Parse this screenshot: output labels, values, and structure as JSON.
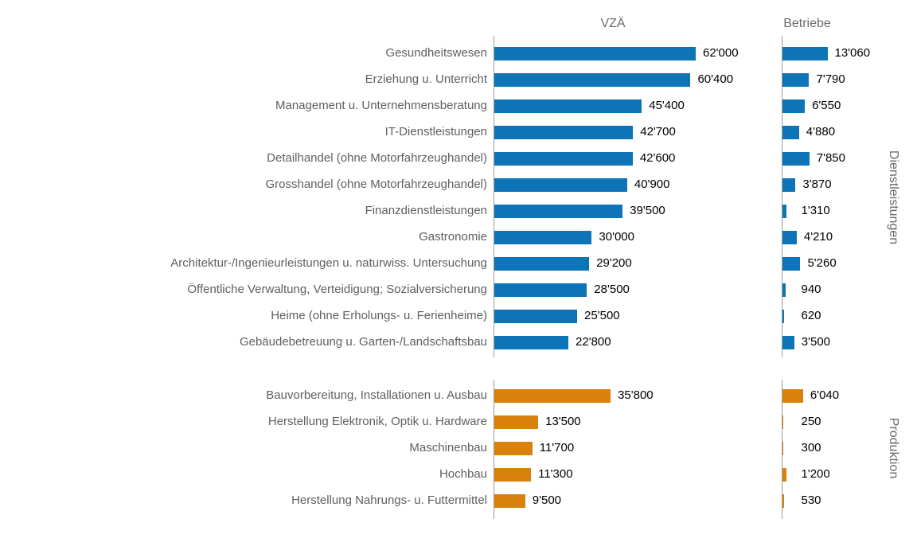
{
  "chart_data": {
    "type": "bar",
    "orientation": "horizontal",
    "title": "",
    "gridlines": false,
    "value_labels": true,
    "axis_color": "#9b9b9b",
    "panels": [
      {
        "title": "VZÄ",
        "max": 62000
      },
      {
        "title": "Betriebe",
        "max": 13060
      }
    ],
    "groups": [
      {
        "label": "Dienstleistungen",
        "color": "#0e74b8",
        "rows": [
          {
            "category": "Gesundheitswesen",
            "vza": 62000,
            "vza_label": "62'000",
            "betriebe": 13060,
            "betriebe_label": "13'060"
          },
          {
            "category": "Erziehung u. Unterricht",
            "vza": 60400,
            "vza_label": "60'400",
            "betriebe": 7790,
            "betriebe_label": "7'790"
          },
          {
            "category": "Management u. Unternehmensberatung",
            "vza": 45400,
            "vza_label": "45'400",
            "betriebe": 6550,
            "betriebe_label": "6'550"
          },
          {
            "category": "IT-Dienstleistungen",
            "vza": 42700,
            "vza_label": "42'700",
            "betriebe": 4880,
            "betriebe_label": "4'880"
          },
          {
            "category": "Detailhandel (ohne Motorfahrzeughandel)",
            "vza": 42600,
            "vza_label": "42'600",
            "betriebe": 7850,
            "betriebe_label": "7'850"
          },
          {
            "category": "Grosshandel (ohne Motorfahrzeughandel)",
            "vza": 40900,
            "vza_label": "40'900",
            "betriebe": 3870,
            "betriebe_label": "3'870"
          },
          {
            "category": "Finanzdienstleistungen",
            "vza": 39500,
            "vza_label": "39'500",
            "betriebe": 1310,
            "betriebe_label": "1'310"
          },
          {
            "category": "Gastronomie",
            "vza": 30000,
            "vza_label": "30'000",
            "betriebe": 4210,
            "betriebe_label": "4'210"
          },
          {
            "category": "Architektur-/Ingenieurleistungen u. naturwiss. Untersuchung",
            "vza": 29200,
            "vza_label": "29'200",
            "betriebe": 5260,
            "betriebe_label": "5'260"
          },
          {
            "category": "Öffentliche Verwaltung, Verteidigung; Sozialversicherung",
            "vza": 28500,
            "vza_label": "28'500",
            "betriebe": 940,
            "betriebe_label": "940"
          },
          {
            "category": "Heime (ohne Erholungs- u. Ferienheime)",
            "vza": 25500,
            "vza_label": "25'500",
            "betriebe": 620,
            "betriebe_label": "620"
          },
          {
            "category": "Gebäudebetreuung u. Garten-/Landschaftsbau",
            "vza": 22800,
            "vza_label": "22'800",
            "betriebe": 3500,
            "betriebe_label": "3'500"
          }
        ]
      },
      {
        "label": "Produktion",
        "color": "#d9800d",
        "rows": [
          {
            "category": "Bauvorbereitung, Installationen u. Ausbau",
            "vza": 35800,
            "vza_label": "35'800",
            "betriebe": 6040,
            "betriebe_label": "6'040"
          },
          {
            "category": "Herstellung Elektronik, Optik u. Hardware",
            "vza": 13500,
            "vza_label": "13'500",
            "betriebe": 250,
            "betriebe_label": "250"
          },
          {
            "category": "Maschinenbau",
            "vza": 11700,
            "vza_label": "11'700",
            "betriebe": 300,
            "betriebe_label": "300"
          },
          {
            "category": "Hochbau",
            "vza": 11300,
            "vza_label": "11'300",
            "betriebe": 1200,
            "betriebe_label": "1'200"
          },
          {
            "category": "Herstellung Nahrungs- u. Futtermittel",
            "vza": 9500,
            "vza_label": "9'500",
            "betriebe": 530,
            "betriebe_label": "530"
          }
        ]
      }
    ]
  }
}
